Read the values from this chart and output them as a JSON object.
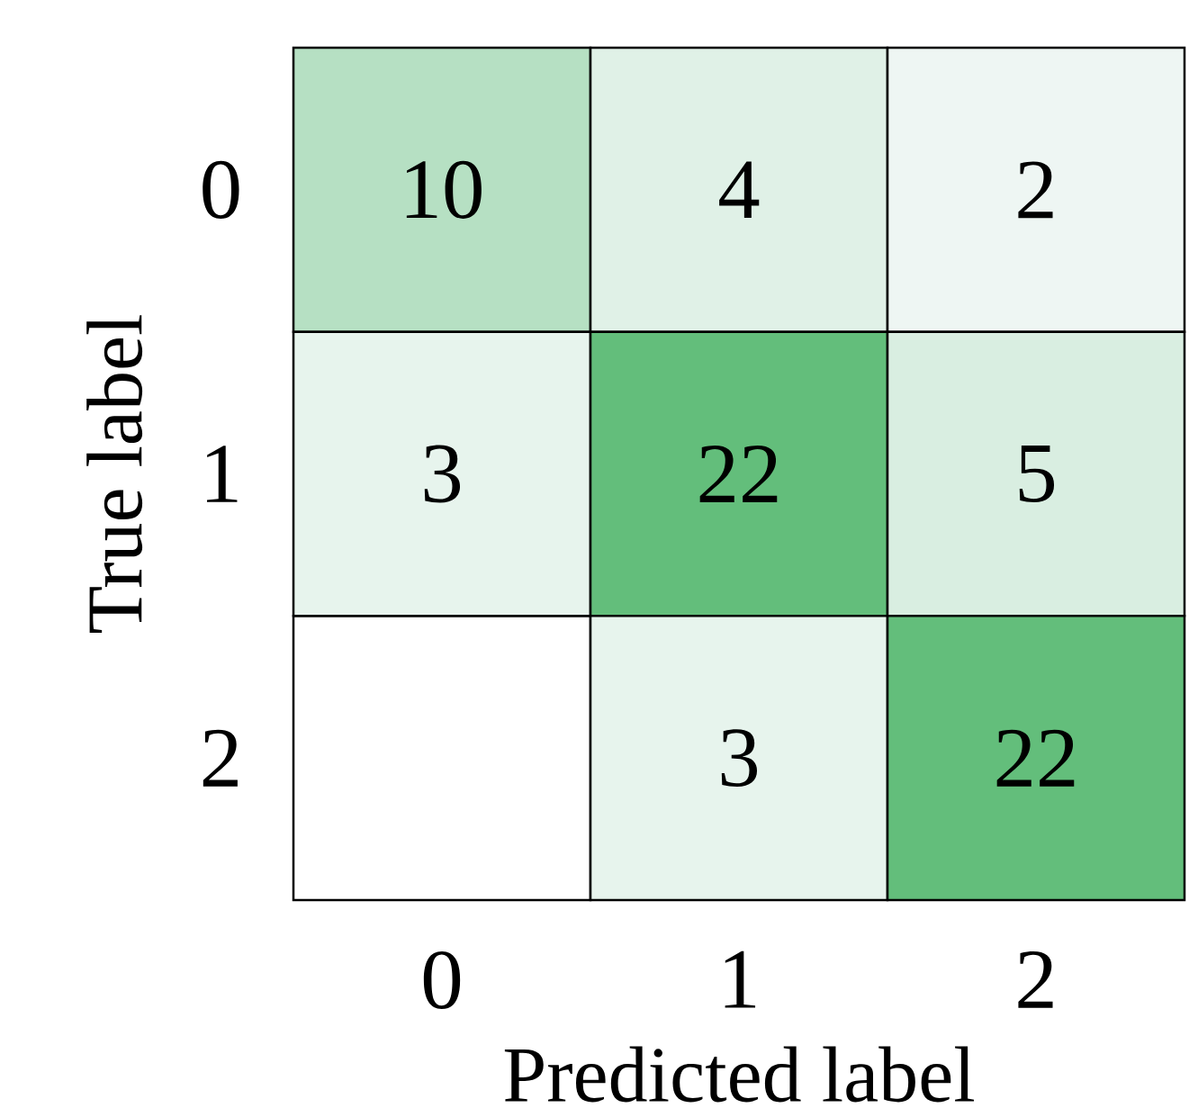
{
  "chart_data": {
    "type": "heatmap",
    "xlabel": "Predicted label",
    "ylabel": "True label",
    "categories": [
      "0",
      "1",
      "2"
    ],
    "y_categories": [
      "0",
      "1",
      "2"
    ],
    "cells": [
      [
        10,
        4,
        2
      ],
      [
        3,
        22,
        5
      ],
      [
        null,
        3,
        22
      ]
    ],
    "data_labels": true
  }
}
